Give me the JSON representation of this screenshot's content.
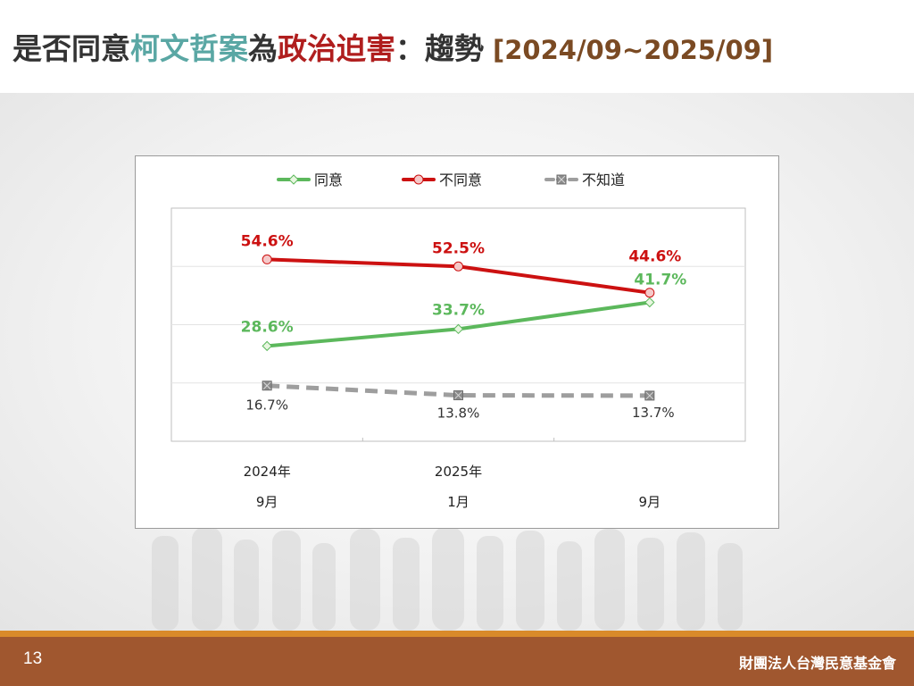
{
  "title": {
    "segments": [
      {
        "text": "是否同意",
        "color": "#333333"
      },
      {
        "text": "柯文哲案",
        "color": "#5aa7a4"
      },
      {
        "text": "為",
        "color": "#333333"
      },
      {
        "text": "政治迫害",
        "color": "#b01e1e"
      },
      {
        "text": "：趨勢",
        "color": "#333333"
      }
    ],
    "range": "[2024/09~2025/09]",
    "range_color": "#7a4a23"
  },
  "chart_data": {
    "type": "line",
    "categories": [
      {
        "line1": "2024年",
        "line2": "9月"
      },
      {
        "line1": "2025年",
        "line2": "1月"
      },
      {
        "line1": "",
        "line2": "9月"
      }
    ],
    "series": [
      {
        "name": "同意",
        "values": [
          28.6,
          33.7,
          41.7
        ],
        "labels": [
          "28.6%",
          "33.7%",
          "41.7%"
        ],
        "color": "#5cb85c",
        "marker": "diamond",
        "dashed": false,
        "bold_labels": true
      },
      {
        "name": "不同意",
        "values": [
          54.6,
          52.5,
          44.6
        ],
        "labels": [
          "54.6%",
          "52.5%",
          "44.6%"
        ],
        "color": "#cc1111",
        "marker": "circle",
        "dashed": false,
        "bold_labels": true
      },
      {
        "name": "不知道",
        "values": [
          16.7,
          13.8,
          13.7
        ],
        "labels": [
          "16.7%",
          "13.8%",
          "13.7%"
        ],
        "color": "#9e9e9e",
        "marker": "square-x",
        "dashed": true,
        "bold_labels": false
      }
    ],
    "ylim": [
      0,
      70
    ],
    "grid": true,
    "legend": "top-center"
  },
  "footer": {
    "page_number": "13",
    "organization": "財團法人台灣民意基金會"
  }
}
